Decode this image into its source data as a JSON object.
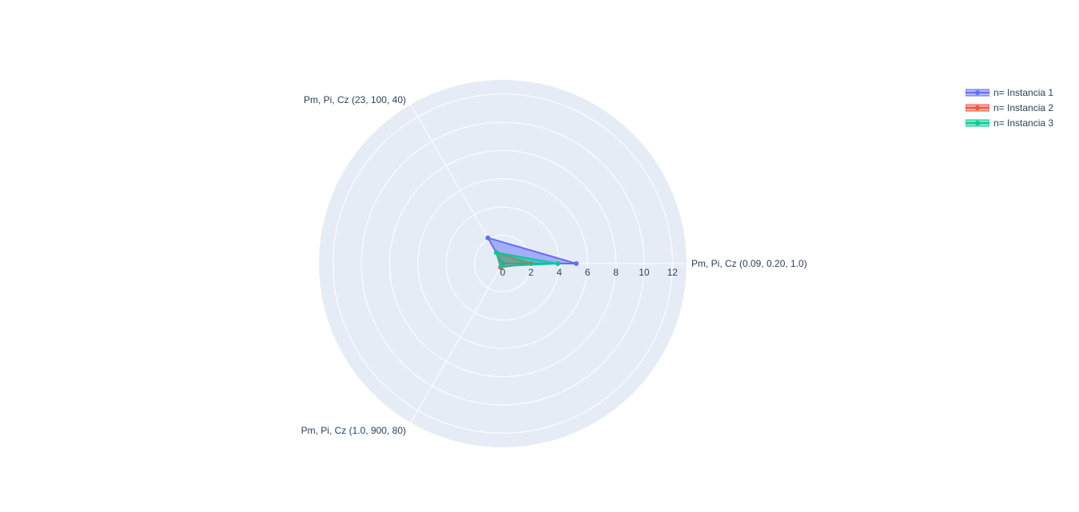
{
  "chart_data": {
    "type": "radar",
    "title": "",
    "categories": [
      "Pm, Pi, Cz  (0.09, 0.20, 1.0)",
      "Pm, Pi, Cz  (23, 100, 40)",
      "Pm, Pi, Cz  (1.0, 900, 80)"
    ],
    "radial_range": [
      0,
      13
    ],
    "radial_ticks": [
      0,
      2,
      4,
      6,
      8,
      10,
      12
    ],
    "grid": true,
    "legend_position": "top-right",
    "series": [
      {
        "name": "n= Instancia 1",
        "values": [
          5.2,
          2.1,
          0.0
        ],
        "color": "#636efa"
      },
      {
        "name": "n= Instancia 2",
        "values": [
          2.0,
          0.9,
          0.3
        ],
        "color": "#ef553b"
      },
      {
        "name": "n= Instancia 3",
        "values": [
          3.9,
          0.9,
          0.2
        ],
        "color": "#00cc96"
      }
    ]
  }
}
